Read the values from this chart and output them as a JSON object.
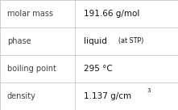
{
  "rows": [
    {
      "label": "molar mass",
      "value": "191.66 g/mol",
      "superscript": null,
      "extra": null
    },
    {
      "label": "phase",
      "value": "liquid",
      "superscript": null,
      "extra": "(at STP)"
    },
    {
      "label": "boiling point",
      "value": "295 °C",
      "superscript": null,
      "extra": null
    },
    {
      "label": "density",
      "value": "1.137 g/cm",
      "superscript": "3",
      "extra": null
    }
  ],
  "col_split": 0.42,
  "background_color": "#ffffff",
  "border_color": "#bbbbbb",
  "label_color": "#404040",
  "value_color": "#111111",
  "label_fontsize": 7.0,
  "value_fontsize": 7.5,
  "extra_fontsize": 5.8,
  "super_fontsize": 5.0,
  "figwidth": 2.21,
  "figheight": 1.36,
  "dpi": 100
}
